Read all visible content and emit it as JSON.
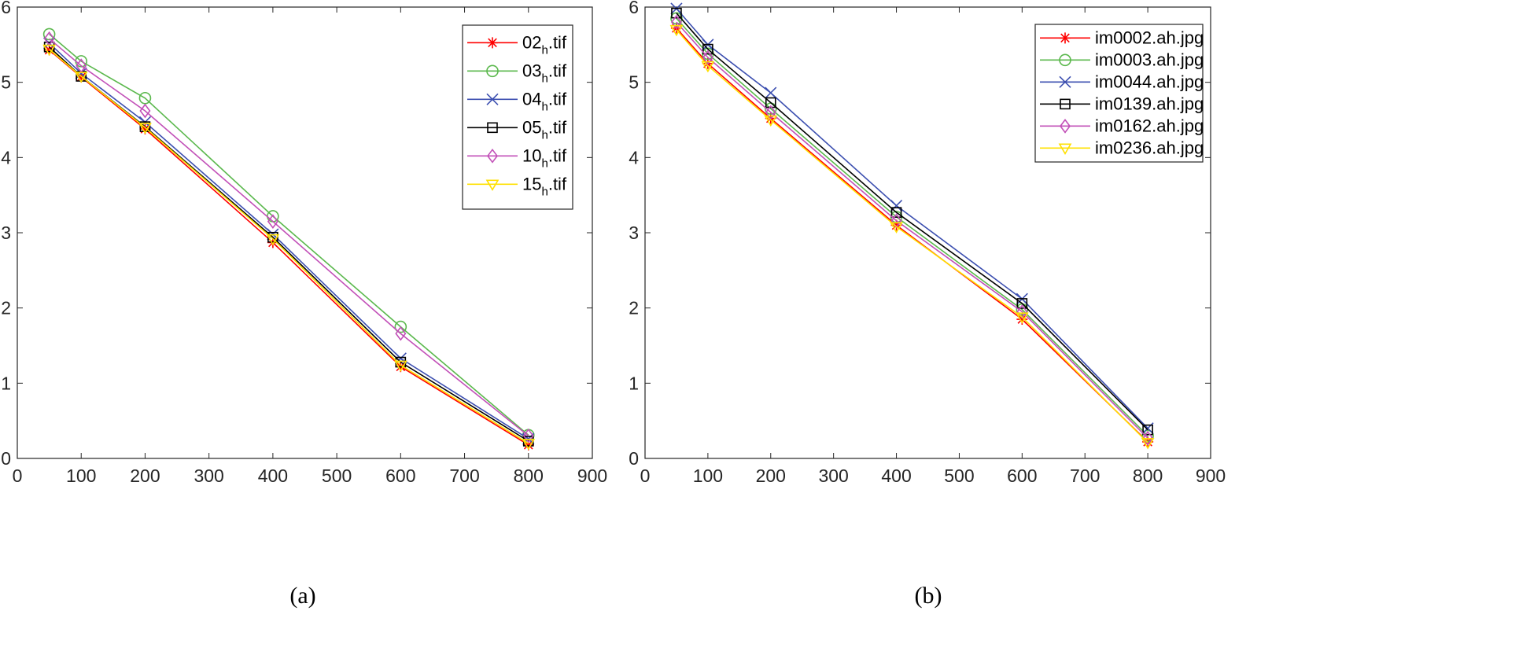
{
  "chart_data": [
    {
      "type": "line",
      "caption": "(a)",
      "xlim": [
        0,
        900
      ],
      "ylim": [
        0,
        6
      ],
      "xticks": [
        0,
        100,
        200,
        300,
        400,
        500,
        600,
        700,
        800,
        900
      ],
      "yticks": [
        0,
        1,
        2,
        3,
        4,
        5,
        6
      ],
      "xlabel": "",
      "ylabel": "",
      "grid": false,
      "legend_position": "top-right",
      "x": [
        50,
        100,
        200,
        400,
        600,
        800
      ],
      "series": [
        {
          "name": "02",
          "sub": "h",
          "suffix": ".tif",
          "color": "#ff0000",
          "marker": "star",
          "values": [
            5.43,
            5.07,
            4.38,
            2.87,
            1.22,
            0.18
          ]
        },
        {
          "name": "03",
          "sub": "h",
          "suffix": ".tif",
          "color": "#5bb84d",
          "marker": "circle",
          "values": [
            5.64,
            5.28,
            4.79,
            3.22,
            1.75,
            0.31
          ]
        },
        {
          "name": "04",
          "sub": "h",
          "suffix": ".tif",
          "color": "#3c4fb0",
          "marker": "x",
          "values": [
            5.52,
            5.12,
            4.47,
            2.98,
            1.33,
            0.26
          ]
        },
        {
          "name": "05",
          "sub": "h",
          "suffix": ".tif",
          "color": "#000000",
          "marker": "square",
          "values": [
            5.47,
            5.08,
            4.41,
            2.94,
            1.28,
            0.23
          ]
        },
        {
          "name": "10",
          "sub": "h",
          "suffix": ".tif",
          "color": "#c250b8",
          "marker": "diamond",
          "values": [
            5.58,
            5.22,
            4.62,
            3.15,
            1.66,
            0.3
          ]
        },
        {
          "name": "15",
          "sub": "h",
          "suffix": ".tif",
          "color": "#ffe000",
          "marker": "triangle-down",
          "values": [
            5.44,
            5.08,
            4.4,
            2.92,
            1.24,
            0.2
          ]
        }
      ]
    },
    {
      "type": "line",
      "caption": "(b)",
      "xlim": [
        0,
        900
      ],
      "ylim": [
        0,
        6
      ],
      "xticks": [
        0,
        100,
        200,
        300,
        400,
        500,
        600,
        700,
        800,
        900
      ],
      "yticks": [
        0,
        1,
        2,
        3,
        4,
        5,
        6
      ],
      "xlabel": "",
      "ylabel": "",
      "grid": false,
      "legend_position": "top-right",
      "x": [
        50,
        100,
        200,
        400,
        600,
        800
      ],
      "series": [
        {
          "name": "im0002.ah.jpg",
          "sub": "",
          "suffix": "",
          "color": "#ff0000",
          "marker": "star",
          "values": [
            5.72,
            5.25,
            4.52,
            3.1,
            1.85,
            0.22
          ]
        },
        {
          "name": "im0003.ah.jpg",
          "sub": "",
          "suffix": "",
          "color": "#5bb84d",
          "marker": "circle",
          "values": [
            5.85,
            5.38,
            4.65,
            3.21,
            1.98,
            0.3
          ]
        },
        {
          "name": "im0044.ah.jpg",
          "sub": "",
          "suffix": "",
          "color": "#3c4fb0",
          "marker": "x",
          "values": [
            5.98,
            5.5,
            4.86,
            3.36,
            2.12,
            0.4
          ]
        },
        {
          "name": "im0139.ah.jpg",
          "sub": "",
          "suffix": "",
          "color": "#000000",
          "marker": "square",
          "values": [
            5.92,
            5.44,
            4.73,
            3.27,
            2.06,
            0.38
          ]
        },
        {
          "name": "im0162.ah.jpg",
          "sub": "",
          "suffix": "",
          "color": "#c250b8",
          "marker": "diamond",
          "values": [
            5.8,
            5.33,
            4.6,
            3.16,
            1.95,
            0.27
          ]
        },
        {
          "name": "im0236.ah.jpg",
          "sub": "",
          "suffix": "",
          "color": "#ffe000",
          "marker": "triangle-down",
          "values": [
            5.7,
            5.22,
            4.5,
            3.08,
            1.88,
            0.21
          ]
        }
      ]
    }
  ]
}
